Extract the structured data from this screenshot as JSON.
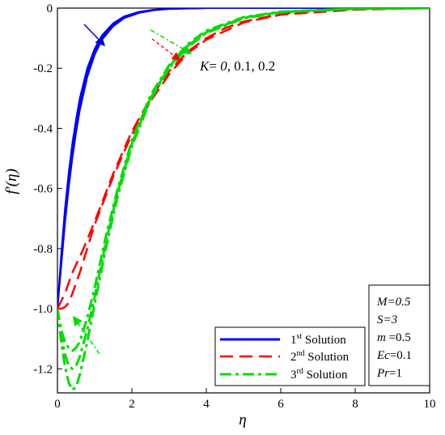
{
  "chart_data": {
    "type": "line",
    "xlabel": "η",
    "ylabel": "f′(η)",
    "xlim": [
      0,
      10
    ],
    "ylim": [
      -1.28,
      0
    ],
    "x_ticks": [
      0,
      2,
      4,
      6,
      8,
      10
    ],
    "x_tick_labels": [
      "0",
      "2",
      "4",
      "6",
      "8",
      "10"
    ],
    "y_ticks": [
      0,
      -0.2,
      -0.4,
      -0.6,
      -0.8,
      -1.0,
      -1.2
    ],
    "y_tick_labels": [
      "0",
      "-0.2",
      "-0.4",
      "-0.6",
      "-0.8",
      "-1.0",
      "-1.2"
    ],
    "legend_position": "bottom-right",
    "annotation": {
      "prefix": "K",
      "mid": "= ",
      "k0": "0,",
      "rest": " 0.1, 0.2"
    },
    "legend": [
      {
        "ord": "1",
        "sup": "st",
        "suffix": " Solution",
        "color": "#0000ff",
        "style": "solid"
      },
      {
        "ord": "2",
        "sup": "nd",
        "suffix": " Solution",
        "color": "#ff0000",
        "style": "dash"
      },
      {
        "ord": "3",
        "sup": "rd",
        "suffix": " Solution",
        "color": "#00dd00",
        "style": "dashdot"
      }
    ],
    "params": [
      {
        "name": "M",
        "eq": "=0.5",
        "italic_value": true
      },
      {
        "name": "S",
        "eq": "=3",
        "italic_value": true
      },
      {
        "name": "m",
        "eq": " =0.5",
        "italic_value": false
      },
      {
        "name": "Ec",
        "eq": "=0.1",
        "italic_value": false
      },
      {
        "name": "Pr",
        "eq": "=1",
        "italic_value": false
      }
    ],
    "series": [
      {
        "name": "1st Solution, K=0",
        "color": "#0000ff",
        "style": "solid",
        "width": 2,
        "x": [
          0,
          0.1,
          0.2,
          0.3,
          0.4,
          0.5,
          0.6,
          0.8,
          1.0,
          1.2,
          1.5,
          1.8,
          2.2,
          2.6,
          3.0,
          4.0,
          6.0,
          10.0
        ],
        "y": [
          -1.0,
          -0.82,
          -0.67,
          -0.55,
          -0.45,
          -0.37,
          -0.3,
          -0.2,
          -0.135,
          -0.09,
          -0.05,
          -0.027,
          -0.012,
          -0.005,
          -0.002,
          0,
          0,
          0
        ]
      },
      {
        "name": "1st Solution, K=0.1",
        "color": "#0000ff",
        "style": "solid",
        "width": 2,
        "x": [
          0,
          0.1,
          0.2,
          0.3,
          0.4,
          0.5,
          0.6,
          0.8,
          1.0,
          1.2,
          1.5,
          1.8,
          2.2,
          2.6,
          3.0,
          4.0,
          6.0,
          10.0
        ],
        "y": [
          -1.0,
          -0.84,
          -0.695,
          -0.575,
          -0.475,
          -0.39,
          -0.32,
          -0.215,
          -0.145,
          -0.098,
          -0.055,
          -0.03,
          -0.014,
          -0.006,
          -0.0025,
          0,
          0,
          0
        ]
      },
      {
        "name": "1st Solution, K=0.2",
        "color": "#0000ff",
        "style": "solid",
        "width": 2,
        "x": [
          0,
          0.1,
          0.2,
          0.3,
          0.4,
          0.5,
          0.6,
          0.8,
          1.0,
          1.2,
          1.5,
          1.8,
          2.2,
          2.6,
          3.0,
          4.0,
          6.0,
          10.0
        ],
        "y": [
          -1.0,
          -0.86,
          -0.72,
          -0.6,
          -0.5,
          -0.415,
          -0.34,
          -0.23,
          -0.155,
          -0.105,
          -0.06,
          -0.033,
          -0.016,
          -0.007,
          -0.003,
          0,
          0,
          0
        ]
      },
      {
        "name": "2nd Solution, K=0",
        "color": "#ff0000",
        "style": "dash",
        "width": 2.5,
        "x": [
          0,
          0.2,
          0.4,
          0.7,
          1.0,
          1.5,
          2.0,
          2.5,
          3.0,
          3.5,
          4.0,
          4.5,
          5.0,
          6.0,
          7.0,
          8.0,
          10.0
        ],
        "y": [
          -1.0,
          -0.95,
          -0.88,
          -0.8,
          -0.71,
          -0.55,
          -0.41,
          -0.3,
          -0.21,
          -0.145,
          -0.1,
          -0.067,
          -0.045,
          -0.02,
          -0.009,
          -0.004,
          0
        ]
      },
      {
        "name": "2nd Solution, K=0.1",
        "color": "#ff0000",
        "style": "dash",
        "width": 2.5,
        "x": [
          0,
          0.1,
          0.2,
          0.3,
          0.4,
          0.6,
          0.8,
          1.0,
          1.5,
          2.0,
          2.5,
          3.0,
          3.5,
          4.0,
          5.0,
          6.0,
          8.0,
          10.0
        ],
        "y": [
          -1.0,
          -1.0,
          -0.995,
          -0.98,
          -0.95,
          -0.88,
          -0.8,
          -0.72,
          -0.56,
          -0.42,
          -0.31,
          -0.22,
          -0.15,
          -0.105,
          -0.048,
          -0.022,
          -0.005,
          0
        ]
      },
      {
        "name": "3rd Solution, K=0",
        "color": "#00dd00",
        "style": "dashdot",
        "width": 3,
        "x": [
          0,
          0.1,
          0.2,
          0.3,
          0.4,
          0.5,
          0.6,
          0.8,
          1.0,
          1.3,
          1.6,
          2.0,
          2.5,
          3.0,
          3.5,
          4.0,
          5.0,
          6.0,
          8.0,
          10.0
        ],
        "y": [
          -1.0,
          -1.07,
          -1.11,
          -1.13,
          -1.14,
          -1.13,
          -1.11,
          -1.03,
          -0.93,
          -0.76,
          -0.61,
          -0.44,
          -0.29,
          -0.19,
          -0.12,
          -0.075,
          -0.03,
          -0.012,
          -0.002,
          0
        ]
      },
      {
        "name": "3rd Solution, K=0.1",
        "color": "#00dd00",
        "style": "dashdot",
        "width": 3,
        "x": [
          0,
          0.1,
          0.2,
          0.3,
          0.4,
          0.5,
          0.6,
          0.8,
          1.0,
          1.3,
          1.6,
          2.0,
          2.5,
          3.0,
          3.5,
          4.0,
          5.0,
          6.0,
          8.0,
          10.0
        ],
        "y": [
          -1.0,
          -1.09,
          -1.15,
          -1.19,
          -1.2,
          -1.19,
          -1.16,
          -1.07,
          -0.96,
          -0.78,
          -0.62,
          -0.45,
          -0.3,
          -0.195,
          -0.125,
          -0.08,
          -0.032,
          -0.013,
          -0.002,
          0
        ]
      },
      {
        "name": "3rd Solution, K=0.2",
        "color": "#00dd00",
        "style": "dashdot",
        "width": 3,
        "x": [
          0,
          0.1,
          0.2,
          0.3,
          0.4,
          0.5,
          0.6,
          0.8,
          1.0,
          1.3,
          1.6,
          2.0,
          2.5,
          3.0,
          3.5,
          4.0,
          5.0,
          6.0,
          8.0,
          10.0
        ],
        "y": [
          -1.0,
          -1.11,
          -1.19,
          -1.245,
          -1.27,
          -1.26,
          -1.22,
          -1.11,
          -0.985,
          -0.8,
          -0.635,
          -0.46,
          -0.305,
          -0.2,
          -0.13,
          -0.083,
          -0.034,
          -0.014,
          -0.002,
          0
        ]
      }
    ]
  }
}
